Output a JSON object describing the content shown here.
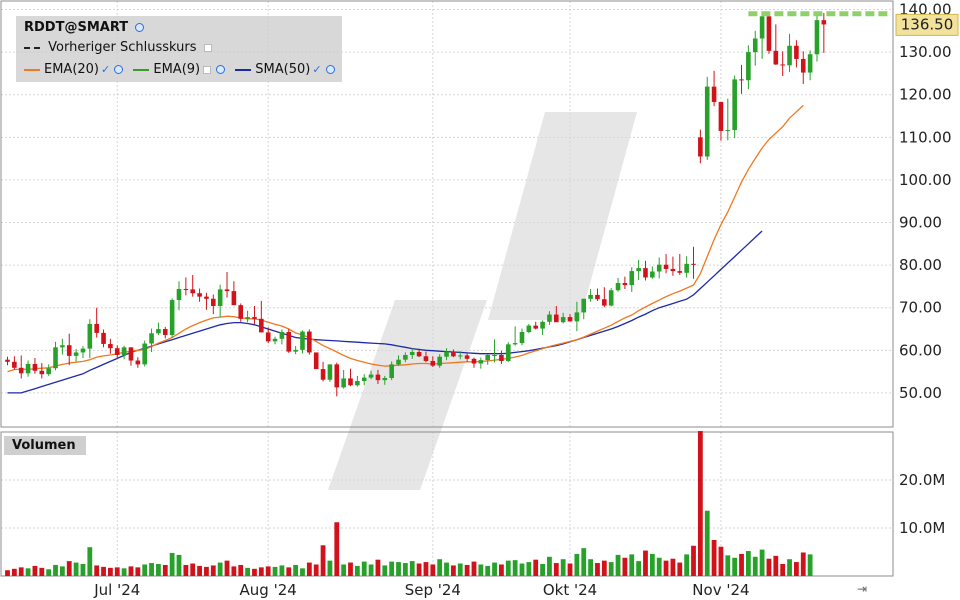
{
  "chart_data": [
    {
      "type": "candlestick",
      "symbol_label": "RDDT@SMART",
      "legend": [
        {
          "name": "Vorheriger Schlusskurs",
          "color": "#222222",
          "style": "dashed"
        },
        {
          "name": "EMA(20)",
          "color": "#f07820"
        },
        {
          "name": "EMA(9)",
          "color": "#3a9a2a"
        },
        {
          "name": "SMA(50)",
          "color": "#1c2aa8"
        }
      ],
      "legend_placement": "top-left",
      "y_ticks": [
        "50.00",
        "60.00",
        "70.00",
        "80.00",
        "90.00",
        "100.00",
        "110.00",
        "120.00",
        "130.00",
        "140.00"
      ],
      "ylim": [
        42,
        142
      ],
      "last_price": "136.50",
      "previous_close": 139,
      "x_labels": [
        "Jul '24",
        "Aug '24",
        "Sep '24",
        "Okt '24",
        "Nov '24"
      ],
      "x_label_index": [
        16,
        38,
        62,
        82,
        104
      ],
      "ohlc": [
        [
          57.8,
          58.5,
          56.5,
          57.3
        ],
        [
          57.3,
          58.6,
          55.5,
          55.9
        ],
        [
          55.9,
          58.8,
          53.4,
          54.6
        ],
        [
          54.6,
          57.6,
          53.8,
          56.8
        ],
        [
          56.8,
          58.2,
          54.5,
          55.2
        ],
        [
          55.2,
          57.0,
          53.4,
          54.4
        ],
        [
          54.4,
          56.7,
          54.0,
          55.8
        ],
        [
          55.8,
          62.0,
          55.3,
          60.7
        ],
        [
          60.7,
          62.7,
          59.0,
          61.2
        ],
        [
          61.2,
          63.9,
          56.5,
          58.7
        ],
        [
          58.7,
          60.3,
          57.4,
          59.5
        ],
        [
          59.5,
          61.0,
          58.2,
          60.4
        ],
        [
          60.4,
          67.3,
          58.2,
          66.2
        ],
        [
          66.2,
          70.0,
          63.0,
          64.1
        ],
        [
          64.1,
          64.9,
          60.7,
          61.5
        ],
        [
          61.5,
          62.7,
          59.2,
          60.5
        ],
        [
          60.5,
          61.2,
          57.9,
          58.9
        ],
        [
          58.9,
          61.1,
          57.9,
          60.7
        ],
        [
          60.7,
          60.7,
          56.4,
          57.6
        ],
        [
          57.6,
          58.4,
          55.9,
          56.7
        ],
        [
          56.7,
          62.3,
          56.2,
          61.6
        ],
        [
          61.6,
          65.1,
          59.6,
          64.0
        ],
        [
          64.0,
          66.5,
          63.6,
          65.0
        ],
        [
          65.0,
          65.5,
          62.8,
          63.6
        ],
        [
          63.6,
          72.2,
          63.0,
          71.8
        ],
        [
          71.8,
          76.2,
          69.4,
          74.4
        ],
        [
          74.4,
          77.1,
          72.9,
          74.3
        ],
        [
          74.3,
          77.7,
          72.6,
          73.4
        ],
        [
          73.4,
          74.5,
          71.4,
          72.6
        ],
        [
          72.6,
          73.5,
          69.5,
          72.1
        ],
        [
          72.1,
          73.1,
          68.5,
          70.4
        ],
        [
          70.4,
          75.4,
          67.8,
          74.3
        ],
        [
          74.3,
          78.4,
          72.4,
          73.9
        ],
        [
          73.9,
          76.2,
          70.6,
          70.6
        ],
        [
          70.6,
          71.0,
          66.7,
          67.4
        ],
        [
          67.4,
          69.3,
          66.6,
          67.8
        ],
        [
          67.8,
          70.4,
          66.1,
          67.4
        ],
        [
          67.4,
          71.6,
          64.6,
          64.2
        ],
        [
          64.2,
          65.4,
          61.7,
          62.1
        ],
        [
          62.1,
          63.2,
          61.4,
          62.7
        ],
        [
          62.7,
          64.9,
          61.4,
          64.3
        ],
        [
          64.3,
          65.0,
          59.4,
          59.7
        ],
        [
          59.7,
          61.0,
          59.1,
          60.1
        ],
        [
          60.1,
          64.7,
          59.3,
          64.4
        ],
        [
          64.4,
          64.9,
          59.0,
          59.5
        ],
        [
          59.5,
          59.5,
          55.8,
          55.6
        ],
        [
          55.6,
          57.3,
          52.7,
          53.1
        ],
        [
          53.1,
          56.7,
          52.6,
          56.7
        ],
        [
          56.7,
          57.1,
          49.2,
          51.3
        ],
        [
          51.3,
          55.4,
          51.0,
          53.4
        ],
        [
          53.4,
          55.7,
          51.6,
          51.8
        ],
        [
          51.8,
          54.0,
          51.5,
          52.8
        ],
        [
          52.8,
          54.4,
          51.8,
          53.6
        ],
        [
          53.6,
          55.2,
          53.2,
          54.3
        ],
        [
          54.3,
          55.4,
          52.1,
          53.0
        ],
        [
          53.0,
          54.0,
          51.9,
          53.5
        ],
        [
          53.5,
          57.4,
          53.0,
          56.7
        ],
        [
          56.7,
          58.8,
          56.4,
          57.8
        ],
        [
          57.8,
          59.5,
          57.2,
          58.9
        ],
        [
          58.9,
          60.5,
          58.0,
          59.6
        ],
        [
          59.6,
          60.4,
          58.4,
          58.6
        ],
        [
          58.6,
          59.7,
          57.2,
          57.5
        ],
        [
          57.5,
          58.6,
          56.1,
          56.4
        ],
        [
          56.4,
          59.1,
          55.9,
          58.5
        ],
        [
          58.5,
          60.5,
          57.7,
          59.7
        ],
        [
          59.7,
          60.2,
          58.4,
          58.6
        ],
        [
          58.6,
          59.8,
          57.9,
          58.8
        ],
        [
          58.8,
          59.2,
          57.3,
          58.0
        ],
        [
          58.0,
          58.3,
          55.9,
          56.9
        ],
        [
          56.9,
          58.3,
          55.7,
          57.7
        ],
        [
          57.7,
          59.1,
          56.6,
          58.9
        ],
        [
          58.9,
          62.6,
          57.2,
          58.9
        ],
        [
          58.9,
          59.9,
          56.8,
          57.5
        ],
        [
          57.5,
          61.9,
          57.3,
          61.4
        ],
        [
          61.4,
          65.6,
          61.1,
          61.7
        ],
        [
          61.7,
          65.1,
          61.2,
          64.3
        ],
        [
          64.3,
          66.2,
          64.0,
          65.8
        ],
        [
          65.8,
          66.7,
          64.9,
          65.1
        ],
        [
          65.1,
          67.0,
          63.6,
          66.7
        ],
        [
          66.7,
          69.2,
          66.0,
          68.4
        ],
        [
          68.4,
          70.4,
          67.3,
          66.6
        ],
        [
          66.6,
          68.8,
          66.3,
          67.8
        ],
        [
          67.8,
          68.5,
          66.7,
          66.8
        ],
        [
          66.8,
          71.4,
          64.5,
          68.9
        ],
        [
          68.9,
          72.1,
          67.3,
          72.1
        ],
        [
          72.1,
          74.4,
          71.4,
          73.0
        ],
        [
          73.0,
          74.5,
          71.6,
          72.0
        ],
        [
          72.0,
          74.8,
          70.1,
          70.5
        ],
        [
          70.5,
          74.6,
          70.3,
          74.1
        ],
        [
          74.1,
          77.0,
          73.8,
          75.8
        ],
        [
          75.8,
          77.3,
          74.4,
          75.3
        ],
        [
          75.3,
          79.5,
          73.7,
          78.6
        ],
        [
          78.6,
          81.2,
          76.5,
          79.3
        ],
        [
          79.3,
          81.0,
          76.4,
          77.1
        ],
        [
          77.1,
          79.7,
          76.8,
          78.5
        ],
        [
          78.5,
          81.8,
          76.9,
          80.1
        ],
        [
          80.1,
          82.6,
          78.1,
          79.1
        ],
        [
          79.1,
          82.0,
          77.5,
          78.6
        ],
        [
          78.6,
          82.6,
          77.7,
          78.2
        ],
        [
          78.2,
          82.1,
          77.1,
          80.3
        ],
        [
          80.3,
          84.3,
          76.8,
          80.1
        ],
        [
          110.0,
          111.8,
          103.9,
          105.5
        ],
        [
          105.5,
          124.2,
          104.7,
          121.9
        ],
        [
          121.9,
          125.6,
          117.3,
          118.3
        ],
        [
          118.3,
          118.0,
          109.2,
          111.5
        ],
        [
          111.5,
          119.1,
          109.3,
          111.7
        ],
        [
          111.7,
          124.5,
          109.8,
          123.6
        ],
        [
          123.6,
          127.0,
          120.2,
          123.4
        ],
        [
          123.4,
          131.6,
          121.3,
          130.0
        ],
        [
          130.0,
          135.0,
          126.8,
          133.2
        ],
        [
          133.2,
          138.8,
          128.4,
          138.4
        ],
        [
          138.4,
          138.8,
          129.6,
          130.3
        ],
        [
          130.3,
          136.5,
          127.0,
          127.1
        ],
        [
          127.1,
          130.2,
          124.4,
          126.9
        ],
        [
          126.9,
          134.3,
          125.3,
          131.5
        ],
        [
          131.5,
          132.8,
          126.4,
          128.4
        ],
        [
          128.4,
          130.2,
          122.5,
          125.2
        ],
        [
          125.2,
          130.4,
          123.4,
          129.5
        ],
        [
          129.5,
          138.7,
          127.8,
          137.5
        ],
        [
          137.5,
          139.2,
          129.8,
          136.5
        ]
      ],
      "ema20": [
        55,
        55.5,
        55.6,
        55.5,
        55.7,
        55.8,
        55.9,
        56.3,
        56.7,
        57.0,
        57.2,
        57.4,
        57.8,
        58.4,
        58.7,
        58.9,
        59.2,
        59.5,
        59.8,
        60.0,
        60.2,
        60.9,
        61.7,
        62.3,
        63.0,
        64.0,
        65.0,
        65.8,
        66.5,
        67.1,
        67.6,
        67.8,
        68.0,
        67.9,
        67.6,
        67.4,
        67.4,
        67.1,
        66.6,
        66.1,
        65.7,
        65.0,
        64.1,
        63.6,
        63.0,
        62.1,
        61.1,
        60.4,
        59.6,
        58.8,
        58.1,
        57.6,
        57.2,
        56.8,
        56.5,
        56.3,
        56.4,
        56.5,
        56.6,
        56.8,
        56.9,
        56.9,
        56.8,
        56.9,
        57.0,
        57.1,
        57.2,
        57.3,
        57.3,
        57.4,
        57.5,
        57.7,
        57.9,
        58.1,
        58.4,
        58.8,
        59.4,
        59.9,
        60.4,
        60.9,
        61.3,
        61.7,
        62.1,
        62.5,
        63.1,
        63.8,
        64.5,
        65.2,
        65.9,
        66.8,
        67.6,
        68.3,
        69.3,
        70.2,
        71.0,
        71.8,
        72.6,
        73.3,
        73.9,
        74.6,
        75.3,
        78.0,
        82.0,
        86.0,
        89.5,
        92.5,
        96.0,
        99.5,
        102.5,
        105.0,
        107.5,
        109.5,
        111.0,
        112.5,
        114.5,
        116.0,
        117.5
      ],
      "sma50": [
        50,
        50,
        50,
        50.5,
        51,
        51.5,
        52,
        52.5,
        53,
        53.5,
        54,
        54.5,
        55.3,
        56,
        56.7,
        57.4,
        58.1,
        58.8,
        59.5,
        60,
        60.5,
        61,
        61.5,
        62,
        62.5,
        63,
        63.5,
        64,
        64.5,
        65,
        65.5,
        66,
        66.3,
        66.5,
        66.5,
        66.3,
        66,
        65.5,
        65,
        64.5,
        64,
        63.5,
        63,
        62.8,
        62.6,
        62.5,
        62.4,
        62.3,
        62.2,
        62.1,
        62,
        61.9,
        61.8,
        61.7,
        61.6,
        61.5,
        61.3,
        61,
        60.7,
        60.4,
        60.2,
        60,
        59.9,
        59.8,
        59.7,
        59.6,
        59.5,
        59.4,
        59.3,
        59.2,
        59.2,
        59.2,
        59.2,
        59.3,
        59.5,
        59.7,
        59.9,
        60.2,
        60.5,
        60.8,
        61.1,
        61.5,
        62,
        62.5,
        63,
        63.5,
        64,
        64.5,
        65,
        65.6,
        66.3,
        67,
        67.8,
        68.5,
        69.3,
        70,
        70.5,
        71,
        71.5,
        72,
        73,
        74.5,
        76,
        77.5,
        79,
        80.5,
        82,
        83.5,
        85,
        86.5,
        88
      ],
      "volume": {
        "label": "Volumen",
        "y_ticks": [
          "10.0M",
          "20.0M"
        ],
        "ylim": [
          0,
          30
        ],
        "values": [
          1.2,
          1.5,
          1.8,
          1.6,
          2.1,
          1.7,
          1.4,
          2.3,
          2.0,
          3.1,
          2.8,
          2.5,
          6.0,
          2.2,
          1.9,
          1.7,
          1.8,
          1.6,
          2.0,
          1.8,
          2.4,
          2.7,
          2.5,
          2.3,
          4.8,
          4.4,
          2.3,
          2.6,
          2.1,
          1.9,
          2.2,
          2.8,
          3.2,
          2.0,
          2.3,
          1.7,
          1.5,
          1.8,
          2.0,
          1.9,
          2.2,
          1.8,
          2.3,
          1.6,
          2.8,
          2.4,
          6.4,
          3.2,
          11.2,
          2.4,
          2.8,
          2.1,
          3.0,
          2.4,
          3.4,
          2.2,
          3.0,
          2.9,
          2.7,
          3.1,
          2.6,
          2.9,
          2.4,
          3.5,
          2.8,
          2.2,
          2.6,
          2.3,
          3.0,
          2.4,
          2.1,
          2.8,
          2.4,
          3.2,
          3.3,
          2.6,
          2.9,
          3.4,
          2.5,
          4.0,
          2.7,
          3.5,
          2.6,
          4.6,
          5.8,
          3.5,
          2.7,
          3.2,
          2.9,
          4.4,
          3.8,
          4.5,
          3.1,
          5.3,
          4.6,
          3.8,
          3.2,
          3.6,
          2.8,
          4.5,
          6.3,
          30.2,
          13.6,
          7.5,
          6.1,
          4.3,
          3.8,
          4.6,
          5.2,
          4.0,
          5.5,
          3.6,
          4.2,
          2.5,
          3.5,
          2.9,
          4.9,
          4.5
        ]
      }
    }
  ]
}
